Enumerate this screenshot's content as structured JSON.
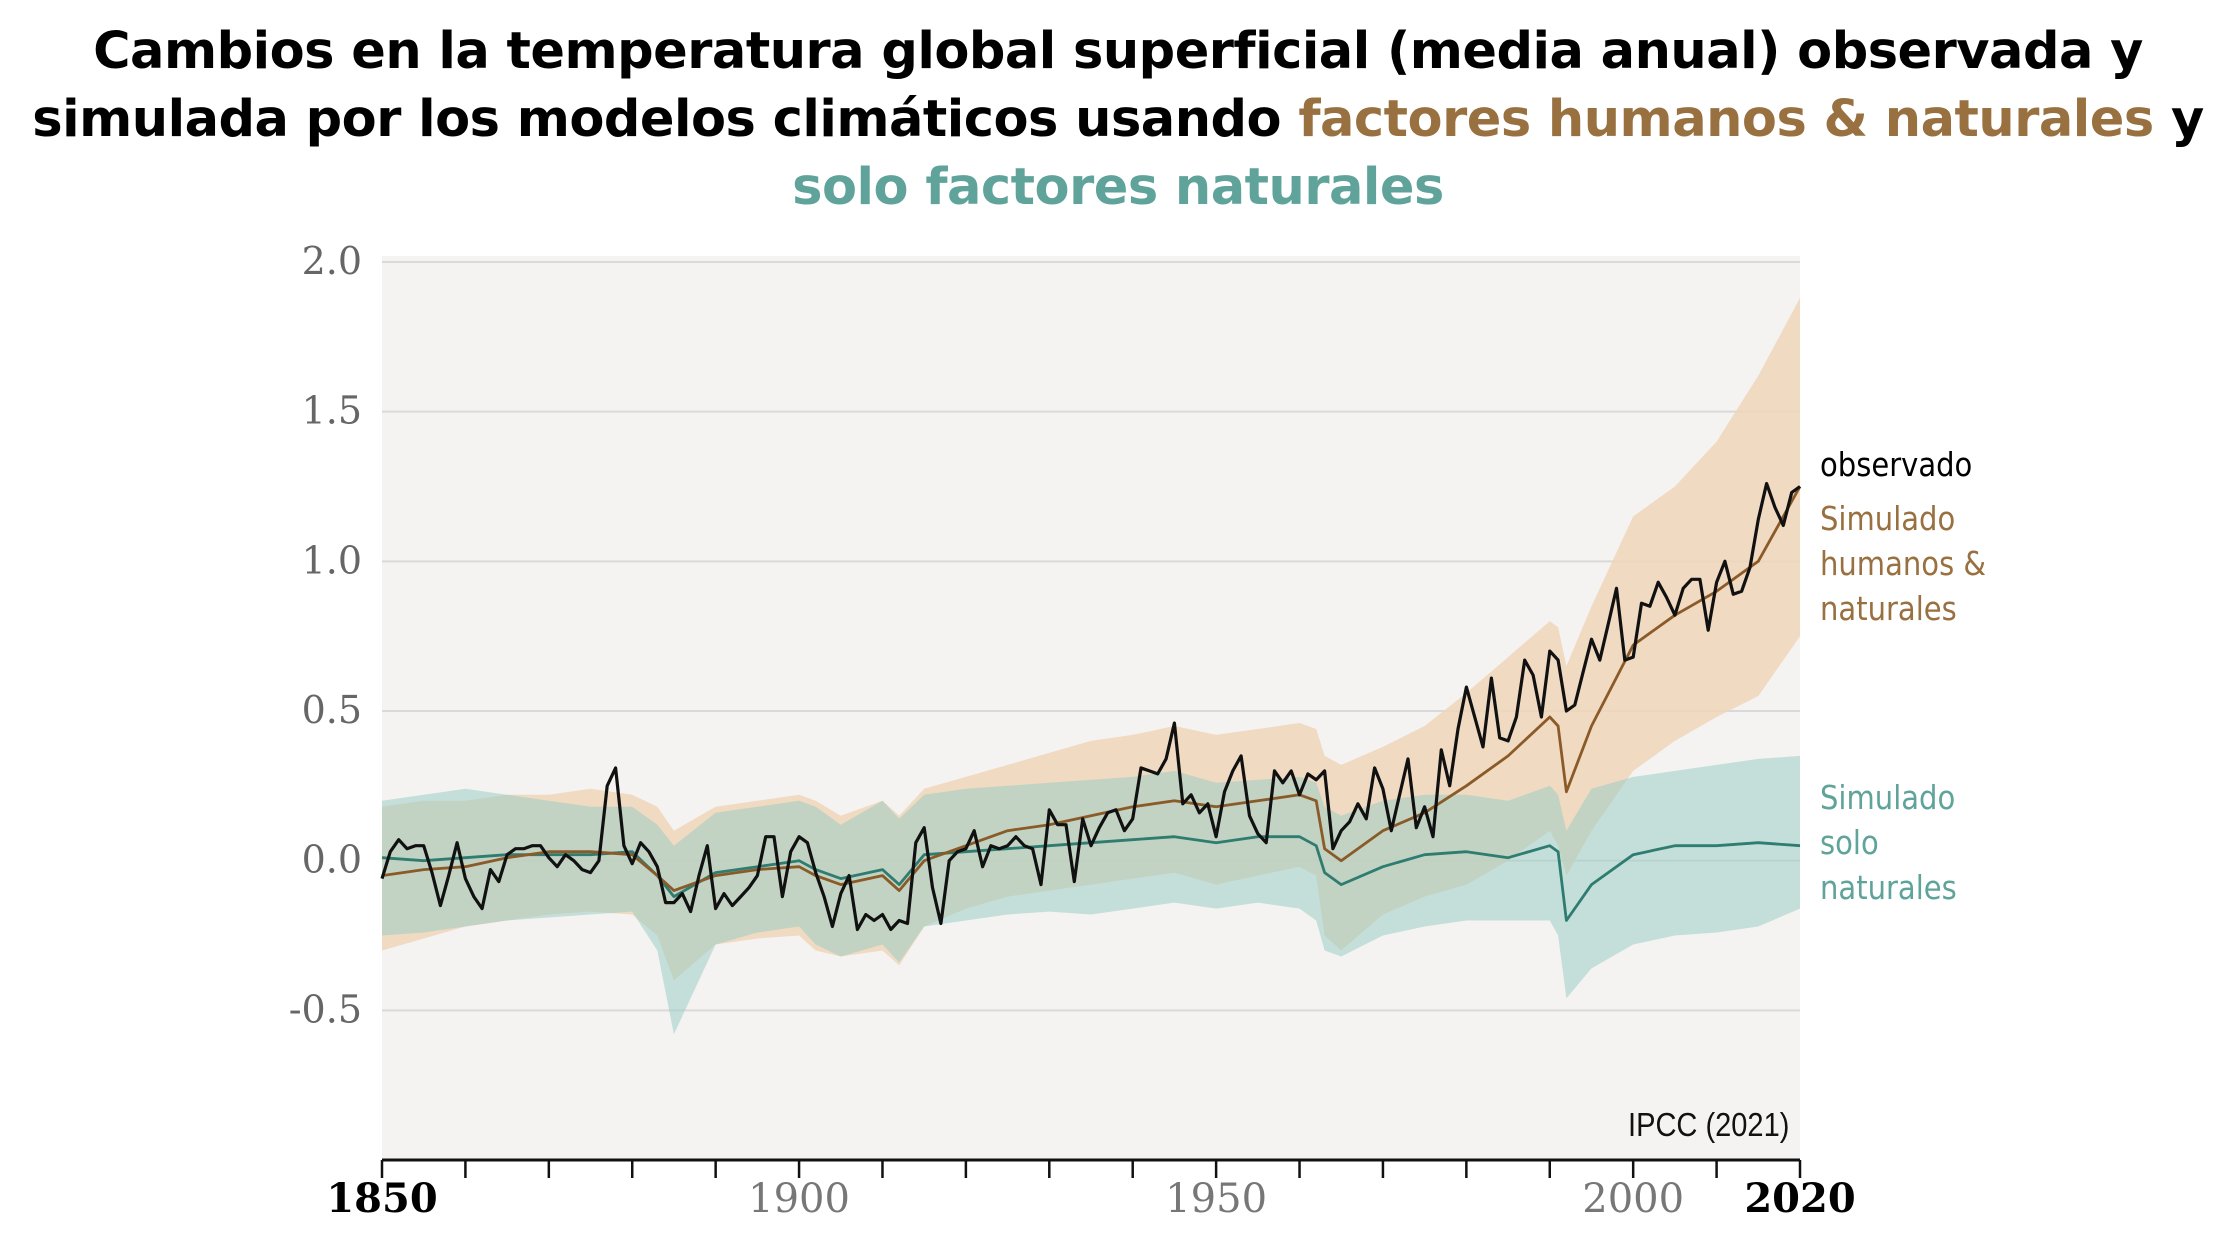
{
  "title": {
    "line1": "Cambios en la temperatura global superficial (media anual) observada y",
    "line2_prefix": "simulada por los modelos climáticos usando ",
    "line2_human": "factores humanos & naturales",
    "line2_suffix": " y",
    "line3": "solo factores naturales"
  },
  "colors": {
    "observed": "#111111",
    "human_line": "#8a5a28",
    "human_band": "#efd5b8",
    "natural_line": "#2f7c70",
    "natural_band": "#9ccdc4",
    "plot_bg": "#f4f3f1",
    "grid": "#d9d9d9"
  },
  "legend": {
    "observed": "observado",
    "human": "Simulado humanos & naturales",
    "natural": "Simulado solo naturales"
  },
  "source": "IPCC (2021)",
  "chart_data": {
    "type": "line",
    "title": "",
    "xlabel": "",
    "ylabel": "",
    "xlim": [
      1850,
      2020
    ],
    "ylim": [
      -1.0,
      2.0
    ],
    "yticks": [
      "2.0",
      "1.5",
      "1.0",
      "0.5",
      "0.0",
      "-0.5"
    ],
    "ytick_values": [
      2.0,
      1.5,
      1.0,
      0.5,
      0.0,
      -0.5
    ],
    "xticks": [
      "1850",
      "1900",
      "1950",
      "2000",
      "2020"
    ],
    "xtick_values": [
      1850,
      1900,
      1950,
      2000,
      2020
    ],
    "grid": true,
    "series": [
      {
        "name": "observado",
        "x": [
          1850,
          1851,
          1852,
          1853,
          1854,
          1855,
          1856,
          1857,
          1858,
          1859,
          1860,
          1861,
          1862,
          1863,
          1864,
          1865,
          1866,
          1867,
          1868,
          1869,
          1870,
          1871,
          1872,
          1873,
          1874,
          1875,
          1876,
          1877,
          1878,
          1879,
          1880,
          1881,
          1882,
          1883,
          1884,
          1885,
          1886,
          1887,
          1888,
          1889,
          1890,
          1891,
          1892,
          1893,
          1894,
          1895,
          1896,
          1897,
          1898,
          1899,
          1900,
          1901,
          1902,
          1903,
          1904,
          1905,
          1906,
          1907,
          1908,
          1909,
          1910,
          1911,
          1912,
          1913,
          1914,
          1915,
          1916,
          1917,
          1918,
          1919,
          1920,
          1921,
          1922,
          1923,
          1924,
          1925,
          1926,
          1927,
          1928,
          1929,
          1930,
          1931,
          1932,
          1933,
          1934,
          1935,
          1936,
          1937,
          1938,
          1939,
          1940,
          1941,
          1942,
          1943,
          1944,
          1945,
          1946,
          1947,
          1948,
          1949,
          1950,
          1951,
          1952,
          1953,
          1954,
          1955,
          1956,
          1957,
          1958,
          1959,
          1960,
          1961,
          1962,
          1963,
          1964,
          1965,
          1966,
          1967,
          1968,
          1969,
          1970,
          1971,
          1972,
          1973,
          1974,
          1975,
          1976,
          1977,
          1978,
          1979,
          1980,
          1981,
          1982,
          1983,
          1984,
          1985,
          1986,
          1987,
          1988,
          1989,
          1990,
          1991,
          1992,
          1993,
          1994,
          1995,
          1996,
          1997,
          1998,
          1999,
          2000,
          2001,
          2002,
          2003,
          2004,
          2005,
          2006,
          2007,
          2008,
          2009,
          2010,
          2011,
          2012,
          2013,
          2014,
          2015,
          2016,
          2017,
          2018,
          2019,
          2020
        ],
        "y": [
          -0.06,
          0.03,
          0.07,
          0.04,
          0.05,
          0.05,
          -0.04,
          -0.15,
          -0.05,
          0.06,
          -0.06,
          -0.12,
          -0.16,
          -0.03,
          -0.07,
          0.02,
          0.04,
          0.04,
          0.05,
          0.05,
          0.01,
          -0.02,
          0.02,
          0.0,
          -0.03,
          -0.04,
          0.0,
          0.25,
          0.31,
          0.05,
          -0.01,
          0.06,
          0.03,
          -0.02,
          -0.14,
          -0.14,
          -0.11,
          -0.17,
          -0.05,
          0.05,
          -0.16,
          -0.11,
          -0.15,
          -0.12,
          -0.09,
          -0.05,
          0.08,
          0.08,
          -0.12,
          0.03,
          0.08,
          0.06,
          -0.04,
          -0.12,
          -0.22,
          -0.11,
          -0.05,
          -0.23,
          -0.18,
          -0.2,
          -0.18,
          -0.23,
          -0.2,
          -0.21,
          0.06,
          0.11,
          -0.09,
          -0.21,
          0.0,
          0.03,
          0.04,
          0.1,
          -0.02,
          0.05,
          0.04,
          0.05,
          0.08,
          0.05,
          0.04,
          -0.08,
          0.17,
          0.12,
          0.12,
          -0.07,
          0.14,
          0.05,
          0.11,
          0.16,
          0.17,
          0.1,
          0.14,
          0.31,
          0.3,
          0.29,
          0.34,
          0.46,
          0.19,
          0.22,
          0.16,
          0.19,
          0.08,
          0.23,
          0.3,
          0.35,
          0.15,
          0.09,
          0.06,
          0.3,
          0.26,
          0.3,
          0.22,
          0.29,
          0.27,
          0.3,
          0.04,
          0.1,
          0.13,
          0.19,
          0.14,
          0.31,
          0.24,
          0.1,
          0.22,
          0.34,
          0.11,
          0.18,
          0.08,
          0.37,
          0.25,
          0.44,
          0.58,
          0.48,
          0.38,
          0.61,
          0.41,
          0.4,
          0.48,
          0.67,
          0.62,
          0.48,
          0.7,
          0.67,
          0.5,
          0.52,
          0.63,
          0.74,
          0.67,
          0.79,
          0.91,
          0.67,
          0.68,
          0.86,
          0.85,
          0.93,
          0.88,
          0.82,
          0.91,
          0.94,
          0.94,
          0.77,
          0.93,
          1.0,
          0.89,
          0.9,
          0.98,
          1.14,
          1.26,
          1.18,
          1.12,
          1.23,
          1.25
        ]
      },
      {
        "name": "Simulado humanos & naturales",
        "x": [
          1850,
          1855,
          1860,
          1865,
          1870,
          1875,
          1880,
          1883,
          1885,
          1890,
          1895,
          1900,
          1902,
          1905,
          1910,
          1912,
          1915,
          1920,
          1925,
          1930,
          1935,
          1940,
          1945,
          1950,
          1955,
          1960,
          1962,
          1963,
          1965,
          1970,
          1975,
          1980,
          1985,
          1990,
          1991,
          1992,
          1995,
          2000,
          2005,
          2010,
          2015,
          2020
        ],
        "y": [
          -0.05,
          -0.03,
          -0.02,
          0.01,
          0.03,
          0.03,
          0.02,
          -0.05,
          -0.1,
          -0.05,
          -0.03,
          -0.02,
          -0.05,
          -0.08,
          -0.05,
          -0.1,
          0.0,
          0.05,
          0.1,
          0.12,
          0.15,
          0.18,
          0.2,
          0.18,
          0.2,
          0.22,
          0.2,
          0.04,
          0.0,
          0.1,
          0.16,
          0.25,
          0.35,
          0.48,
          0.45,
          0.23,
          0.45,
          0.72,
          0.82,
          0.9,
          1.0,
          1.25
        ]
      },
      {
        "name": "Simulado solo naturales",
        "x": [
          1850,
          1855,
          1860,
          1865,
          1870,
          1875,
          1880,
          1883,
          1885,
          1890,
          1895,
          1900,
          1902,
          1905,
          1910,
          1912,
          1915,
          1920,
          1925,
          1930,
          1935,
          1940,
          1945,
          1950,
          1955,
          1960,
          1962,
          1963,
          1965,
          1970,
          1975,
          1980,
          1985,
          1990,
          1991,
          1992,
          1995,
          2000,
          2005,
          2010,
          2015,
          2020
        ],
        "y": [
          0.01,
          0.0,
          0.01,
          0.02,
          0.02,
          0.02,
          0.03,
          -0.05,
          -0.12,
          -0.04,
          -0.02,
          0.0,
          -0.03,
          -0.06,
          -0.03,
          -0.08,
          0.02,
          0.03,
          0.04,
          0.05,
          0.06,
          0.07,
          0.08,
          0.06,
          0.08,
          0.08,
          0.05,
          -0.04,
          -0.08,
          -0.02,
          0.02,
          0.03,
          0.01,
          0.05,
          0.03,
          -0.2,
          -0.08,
          0.02,
          0.05,
          0.05,
          0.06,
          0.05
        ]
      }
    ],
    "bands": [
      {
        "name": "Simulado humanos & naturales",
        "x": [
          1850,
          1855,
          1860,
          1865,
          1870,
          1875,
          1880,
          1883,
          1885,
          1890,
          1895,
          1900,
          1902,
          1905,
          1910,
          1912,
          1915,
          1920,
          1925,
          1930,
          1935,
          1940,
          1945,
          1950,
          1955,
          1960,
          1962,
          1963,
          1965,
          1970,
          1975,
          1980,
          1985,
          1990,
          1991,
          1992,
          1995,
          2000,
          2005,
          2010,
          2015,
          2020
        ],
        "low": [
          -0.3,
          -0.26,
          -0.22,
          -0.2,
          -0.18,
          -0.17,
          -0.18,
          -0.25,
          -0.4,
          -0.28,
          -0.26,
          -0.25,
          -0.3,
          -0.32,
          -0.3,
          -0.35,
          -0.22,
          -0.16,
          -0.12,
          -0.1,
          -0.08,
          -0.06,
          -0.04,
          -0.08,
          -0.05,
          -0.02,
          -0.05,
          -0.25,
          -0.3,
          -0.18,
          -0.12,
          -0.08,
          0.0,
          0.1,
          0.05,
          -0.05,
          0.1,
          0.3,
          0.4,
          0.48,
          0.55,
          0.75
        ],
        "high": [
          0.18,
          0.2,
          0.2,
          0.22,
          0.22,
          0.24,
          0.22,
          0.18,
          0.1,
          0.18,
          0.2,
          0.22,
          0.2,
          0.15,
          0.2,
          0.15,
          0.24,
          0.28,
          0.32,
          0.36,
          0.4,
          0.42,
          0.45,
          0.42,
          0.44,
          0.46,
          0.44,
          0.35,
          0.32,
          0.38,
          0.45,
          0.56,
          0.68,
          0.8,
          0.78,
          0.65,
          0.85,
          1.15,
          1.25,
          1.4,
          1.62,
          1.88
        ]
      },
      {
        "name": "Simulado solo naturales",
        "x": [
          1850,
          1855,
          1860,
          1865,
          1870,
          1875,
          1880,
          1883,
          1885,
          1890,
          1895,
          1900,
          1902,
          1905,
          1910,
          1912,
          1915,
          1920,
          1925,
          1930,
          1935,
          1940,
          1945,
          1950,
          1955,
          1960,
          1962,
          1963,
          1965,
          1970,
          1975,
          1980,
          1985,
          1990,
          1991,
          1992,
          1995,
          2000,
          2005,
          2010,
          2015,
          2020
        ],
        "low": [
          -0.25,
          -0.24,
          -0.22,
          -0.2,
          -0.19,
          -0.18,
          -0.17,
          -0.3,
          -0.58,
          -0.28,
          -0.24,
          -0.22,
          -0.28,
          -0.32,
          -0.28,
          -0.34,
          -0.22,
          -0.2,
          -0.18,
          -0.17,
          -0.18,
          -0.16,
          -0.14,
          -0.16,
          -0.14,
          -0.16,
          -0.2,
          -0.3,
          -0.32,
          -0.25,
          -0.22,
          -0.2,
          -0.2,
          -0.2,
          -0.25,
          -0.46,
          -0.36,
          -0.28,
          -0.25,
          -0.24,
          -0.22,
          -0.16
        ],
        "high": [
          0.2,
          0.22,
          0.24,
          0.22,
          0.2,
          0.18,
          0.18,
          0.12,
          0.05,
          0.16,
          0.18,
          0.2,
          0.18,
          0.12,
          0.2,
          0.14,
          0.22,
          0.24,
          0.25,
          0.26,
          0.27,
          0.28,
          0.3,
          0.26,
          0.27,
          0.28,
          0.26,
          0.18,
          0.15,
          0.2,
          0.22,
          0.22,
          0.2,
          0.25,
          0.22,
          0.1,
          0.24,
          0.28,
          0.3,
          0.32,
          0.34,
          0.35
        ]
      }
    ]
  }
}
